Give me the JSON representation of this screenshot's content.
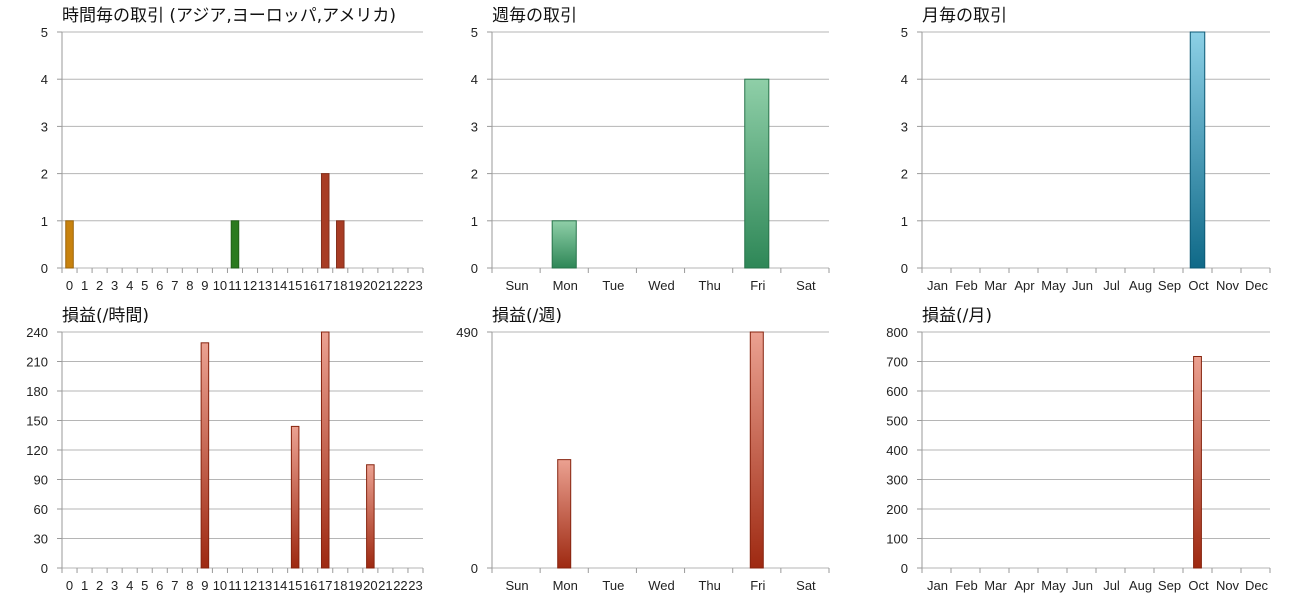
{
  "chart_data": [
    {
      "type": "bar",
      "title": "時間毎の取引 (アジア,ヨーロッパ,アメリカ)",
      "categories": [
        "0",
        "1",
        "2",
        "3",
        "4",
        "5",
        "6",
        "7",
        "8",
        "9",
        "10",
        "11",
        "12",
        "13",
        "14",
        "15",
        "16",
        "17",
        "18",
        "19",
        "20",
        "21",
        "22",
        "23"
      ],
      "values": [
        1,
        0,
        0,
        0,
        0,
        0,
        0,
        0,
        0,
        0,
        0,
        1,
        0,
        0,
        0,
        0,
        0,
        2,
        1,
        0,
        0,
        0,
        0,
        0
      ],
      "bar_colors": [
        "#c8820e",
        "",
        "",
        "",
        "",
        "",
        "",
        "",
        "",
        "",
        "",
        "#2b7a1f",
        "",
        "",
        "",
        "",
        "",
        "#a83c24",
        "#a83c24",
        "",
        "",
        "",
        "",
        ""
      ],
      "ylim": [
        0,
        5
      ],
      "yticks": [
        0,
        1,
        2,
        3,
        4,
        5
      ],
      "xlabel": "",
      "ylabel": "",
      "grid": true,
      "legend": "none"
    },
    {
      "type": "bar",
      "title": "週毎の取引",
      "categories": [
        "Sun",
        "Mon",
        "Tue",
        "Wed",
        "Thu",
        "Fri",
        "Sat"
      ],
      "values": [
        0,
        1,
        0,
        0,
        0,
        4,
        0
      ],
      "gradient": [
        "#8fcfa8",
        "#2e8757"
      ],
      "ylim": [
        0,
        5
      ],
      "yticks": [
        0,
        1,
        2,
        3,
        4,
        5
      ],
      "xlabel": "",
      "ylabel": "",
      "grid": true,
      "legend": "none"
    },
    {
      "type": "bar",
      "title": "月毎の取引",
      "categories": [
        "Jan",
        "Feb",
        "Mar",
        "Apr",
        "May",
        "Jun",
        "Jul",
        "Aug",
        "Sep",
        "Oct",
        "Nov",
        "Dec"
      ],
      "values": [
        0,
        0,
        0,
        0,
        0,
        0,
        0,
        0,
        0,
        5,
        0,
        0
      ],
      "gradient": [
        "#8cd0e6",
        "#0f6988"
      ],
      "ylim": [
        0,
        5
      ],
      "yticks": [
        0,
        1,
        2,
        3,
        4,
        5
      ],
      "xlabel": "",
      "ylabel": "",
      "grid": true,
      "legend": "none"
    },
    {
      "type": "bar",
      "title": "損益(/時間)",
      "categories": [
        "0",
        "1",
        "2",
        "3",
        "4",
        "5",
        "6",
        "7",
        "8",
        "9",
        "10",
        "11",
        "12",
        "13",
        "14",
        "15",
        "16",
        "17",
        "18",
        "19",
        "20",
        "21",
        "22",
        "23"
      ],
      "values": [
        0,
        0,
        0,
        0,
        0,
        0,
        0,
        0,
        0,
        229,
        0,
        0,
        0,
        0,
        0,
        144,
        0,
        240,
        0,
        0,
        105,
        0,
        0,
        0
      ],
      "gradient": [
        "#eba191",
        "#9e2911"
      ],
      "ylim": [
        0,
        240
      ],
      "yticks": [
        0,
        30,
        60,
        90,
        120,
        150,
        180,
        210,
        240
      ],
      "xlabel": "",
      "ylabel": "",
      "grid": true,
      "legend": "none"
    },
    {
      "type": "bar",
      "title": "損益(/週)",
      "categories": [
        "Sun",
        "Mon",
        "Tue",
        "Wed",
        "Thu",
        "Fri",
        "Sat"
      ],
      "values": [
        0,
        225,
        0,
        0,
        0,
        490,
        0
      ],
      "gradient": [
        "#eba191",
        "#9e2911"
      ],
      "ylim": [
        0,
        490
      ],
      "yticks": [
        0,
        490
      ],
      "xlabel": "",
      "ylabel": "",
      "grid": true,
      "legend": "none"
    },
    {
      "type": "bar",
      "title": "損益(/月)",
      "categories": [
        "Jan",
        "Feb",
        "Mar",
        "Apr",
        "May",
        "Jun",
        "Jul",
        "Aug",
        "Sep",
        "Oct",
        "Nov",
        "Dec"
      ],
      "values": [
        0,
        0,
        0,
        0,
        0,
        0,
        0,
        0,
        0,
        717,
        0,
        0
      ],
      "gradient": [
        "#eba191",
        "#9e2911"
      ],
      "ylim": [
        0,
        800
      ],
      "yticks": [
        0,
        100,
        200,
        300,
        400,
        500,
        600,
        700,
        800
      ],
      "xlabel": "",
      "ylabel": "",
      "grid": true,
      "legend": "none"
    }
  ]
}
